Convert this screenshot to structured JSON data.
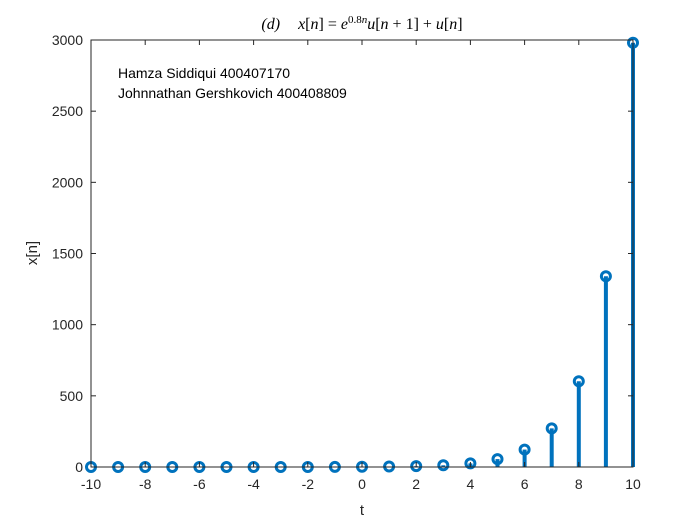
{
  "chart_data": {
    "type": "stem",
    "title": "(d)    x[n] = e^{0.8n}u[n+1] + u[n]",
    "xlabel": "t",
    "ylabel": "x[n]",
    "xlim": [
      -10,
      10
    ],
    "ylim": [
      0,
      3000
    ],
    "xticks": [
      -10,
      -8,
      -6,
      -4,
      -2,
      0,
      2,
      4,
      6,
      8,
      10
    ],
    "yticks": [
      0,
      500,
      1000,
      1500,
      2000,
      2500,
      3000
    ],
    "grid": false,
    "color": "#0072BD",
    "annotations": [
      "Hamza Siddiqui 400407170",
      "Johnnathan Gershkovich 400408809"
    ],
    "x": [
      -10,
      -9,
      -8,
      -7,
      -6,
      -5,
      -4,
      -3,
      -2,
      -1,
      0,
      1,
      2,
      3,
      4,
      5,
      6,
      7,
      8,
      9,
      10
    ],
    "y": [
      0,
      0,
      0,
      0,
      0,
      0,
      0,
      0,
      0,
      0.45,
      2,
      3.23,
      5.95,
      12.02,
      25.53,
      55.6,
      122.5,
      271.4,
      602.8,
      1340.4,
      2981.0
    ]
  }
}
